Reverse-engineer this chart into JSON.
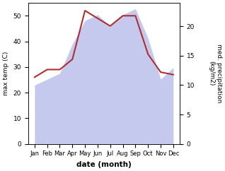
{
  "months": [
    "Jan",
    "Feb",
    "Mar",
    "Apr",
    "May",
    "Jun",
    "Jul",
    "Aug",
    "Sep",
    "Oct",
    "Nov",
    "Dec"
  ],
  "month_x": [
    0,
    1,
    2,
    3,
    4,
    5,
    6,
    7,
    8,
    9,
    10,
    11
  ],
  "temp": [
    26,
    29,
    29,
    33,
    52,
    49,
    46,
    50,
    50,
    35,
    28,
    27
  ],
  "precip": [
    10,
    11,
    12,
    17,
    21,
    22,
    20,
    22,
    23,
    18,
    11,
    13
  ],
  "temp_color": "#b03030",
  "precip_fill_color": "#b0b8e8",
  "precip_fill_alpha": 0.75,
  "temp_ylim": [
    0,
    55
  ],
  "precip_ylim": [
    0,
    24
  ],
  "temp_yticks": [
    0,
    10,
    20,
    30,
    40,
    50
  ],
  "precip_yticks": [
    0,
    5,
    10,
    15,
    20
  ],
  "xlabel": "date (month)",
  "ylabel_left": "max temp (C)",
  "ylabel_right": "med. precipitation\n(kg/m2)",
  "figsize": [
    3.18,
    2.42
  ],
  "dpi": 100
}
